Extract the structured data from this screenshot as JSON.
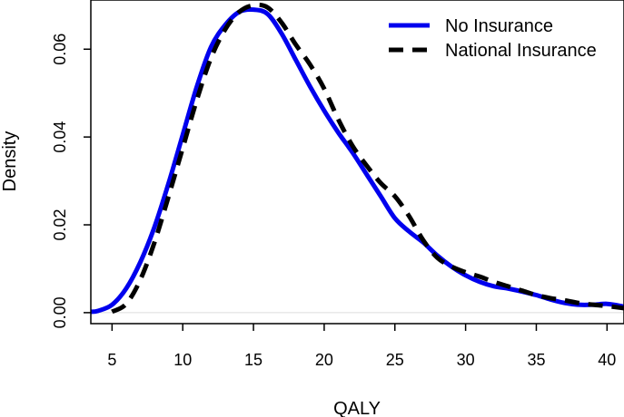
{
  "chart_data": {
    "type": "line",
    "title": "",
    "xlabel": "QALY",
    "ylabel": "Density",
    "xlim": [
      3.5,
      41.2
    ],
    "ylim": [
      -0.0025,
      0.0712
    ],
    "xticks": [
      5,
      10,
      15,
      20,
      25,
      30,
      35,
      40
    ],
    "yticks": [
      0.0,
      0.02,
      0.04,
      0.06
    ],
    "ytick_labels": [
      "0.00",
      "0.02",
      "0.04",
      "0.06"
    ],
    "baseline": 0.0,
    "legend_position": "top-right",
    "series": [
      {
        "name": "No Insurance",
        "color": "#0000ee",
        "style": "solid",
        "x": [
          3.5,
          4,
          5,
          6,
          7,
          8,
          9,
          10,
          11,
          12,
          13,
          14,
          15,
          16,
          17,
          18,
          19,
          20,
          21,
          22,
          23,
          24,
          25,
          26,
          27,
          28,
          29,
          30,
          31,
          32,
          33,
          34,
          35,
          36,
          37,
          38,
          39,
          40,
          41,
          41.2
        ],
        "y": [
          0.0002,
          0.0004,
          0.0018,
          0.0055,
          0.0115,
          0.0195,
          0.0295,
          0.0405,
          0.0515,
          0.0605,
          0.0655,
          0.0685,
          0.069,
          0.068,
          0.0635,
          0.0575,
          0.0515,
          0.046,
          0.041,
          0.0365,
          0.0315,
          0.0265,
          0.0215,
          0.0185,
          0.016,
          0.013,
          0.0105,
          0.0085,
          0.007,
          0.006,
          0.0055,
          0.0048,
          0.004,
          0.003,
          0.0022,
          0.0018,
          0.0018,
          0.002,
          0.0015,
          0.0012
        ]
      },
      {
        "name": "National Insurance",
        "color": "#000000",
        "style": "dashed",
        "x": [
          5,
          6,
          7,
          8,
          9,
          10,
          11,
          12,
          13,
          14,
          15,
          16,
          17,
          18,
          19,
          20,
          21,
          22,
          23,
          24,
          25,
          26,
          27,
          28,
          29,
          30,
          31,
          32,
          33,
          34,
          35,
          36,
          37,
          38,
          39,
          40,
          41,
          41.2
        ],
        "y": [
          0.0002,
          0.002,
          0.0075,
          0.016,
          0.0265,
          0.0375,
          0.0485,
          0.058,
          0.0645,
          0.0685,
          0.07,
          0.0695,
          0.066,
          0.061,
          0.0565,
          0.051,
          0.044,
          0.038,
          0.0335,
          0.0295,
          0.0265,
          0.022,
          0.0165,
          0.0125,
          0.0105,
          0.0092,
          0.0082,
          0.007,
          0.006,
          0.005,
          0.004,
          0.0033,
          0.0028,
          0.0022,
          0.0018,
          0.0015,
          0.0011,
          0.001
        ]
      }
    ]
  }
}
